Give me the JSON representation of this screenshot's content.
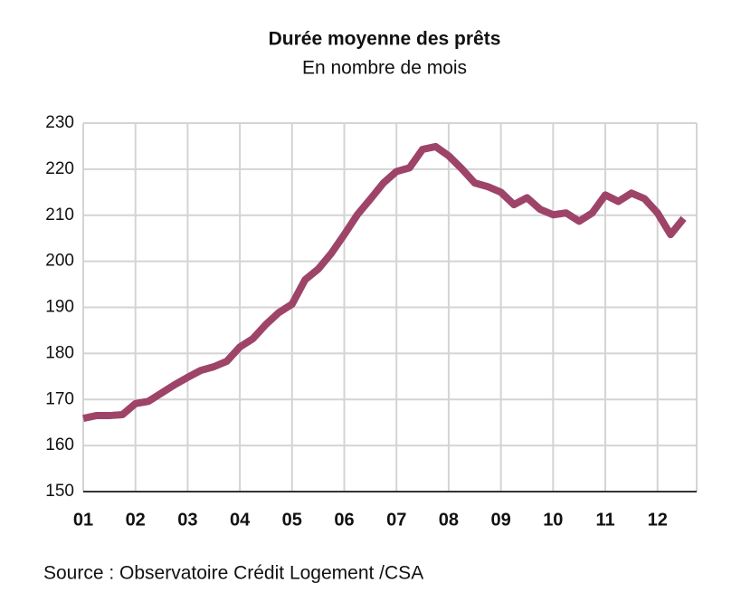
{
  "chart_data": {
    "type": "line",
    "title": "Durée moyenne des prêts",
    "subtitle": "En nombre de mois",
    "source": "Source : Observatoire Crédit Logement /CSA",
    "categories": [
      "01",
      null,
      null,
      null,
      "02",
      null,
      null,
      null,
      "03",
      null,
      null,
      null,
      "04",
      null,
      null,
      null,
      "05",
      null,
      null,
      null,
      "06",
      null,
      null,
      null,
      "07",
      null,
      null,
      null,
      "08",
      null,
      null,
      null,
      "09",
      null,
      null,
      null,
      "10",
      null,
      null,
      null,
      "11",
      null,
      null,
      null,
      "12",
      null,
      null
    ],
    "series": [
      {
        "color": "#9e4468",
        "values": [
          165.9,
          166.5,
          166.5,
          166.7,
          169.1,
          169.6,
          171.4,
          173.2,
          174.8,
          176.3,
          177.1,
          178.3,
          181.4,
          183.2,
          186.3,
          188.9,
          190.7,
          196,
          198.3,
          201.7,
          205.8,
          210.1,
          213.5,
          217,
          219.5,
          220.3,
          224.3,
          224.9,
          222.9,
          220.1,
          217,
          216.2,
          215,
          212.3,
          213.8,
          211.3,
          210.1,
          210.5,
          208.7,
          210.5,
          214.4,
          213,
          214.8,
          213.6,
          210.5,
          205.8,
          209.3
        ]
      }
    ],
    "ylim": [
      150,
      230
    ],
    "yticks": [
      150,
      160,
      170,
      180,
      190,
      200,
      210,
      220,
      230
    ],
    "grid": true
  }
}
